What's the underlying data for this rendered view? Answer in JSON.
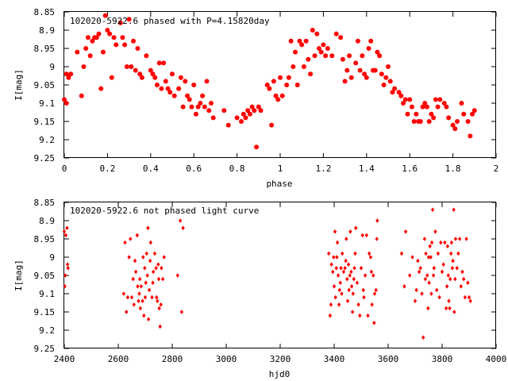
{
  "chart_data": [
    {
      "type": "scatter",
      "title": "102020-5922.6 phased with P=4.15820day",
      "xlabel": "phase",
      "ylabel": "I[mag]",
      "xlim": [
        0,
        2
      ],
      "ylim": [
        9.25,
        8.85
      ],
      "y_inverted": true,
      "xticks": [
        "0",
        "0.2",
        "0.4",
        "0.6",
        "0.8",
        "1",
        "1.2",
        "1.4",
        "1.6",
        "1.8",
        "2"
      ],
      "yticks": [
        "8.85",
        "8.9",
        "8.95",
        "9",
        "9.05",
        "9.1",
        "9.15",
        "9.2",
        "9.25"
      ],
      "marker_color": "#ff0000",
      "marker": "filled-circle",
      "grid": false,
      "points": [
        [
          0.0,
          9.09
        ],
        [
          0.01,
          9.1
        ],
        [
          0.01,
          9.02
        ],
        [
          0.02,
          9.03
        ],
        [
          0.03,
          9.02
        ],
        [
          0.06,
          8.96
        ],
        [
          0.08,
          9.08
        ],
        [
          0.09,
          9.0
        ],
        [
          0.1,
          8.95
        ],
        [
          0.11,
          8.92
        ],
        [
          0.12,
          8.97
        ],
        [
          0.13,
          8.93
        ],
        [
          0.14,
          8.92
        ],
        [
          0.15,
          8.92
        ],
        [
          0.16,
          8.91
        ],
        [
          0.17,
          9.06
        ],
        [
          0.18,
          8.96
        ],
        [
          0.19,
          8.86
        ],
        [
          0.2,
          8.9
        ],
        [
          0.21,
          8.91
        ],
        [
          0.22,
          9.03
        ],
        [
          0.23,
          8.92
        ],
        [
          0.24,
          8.94
        ],
        [
          0.26,
          8.88
        ],
        [
          0.27,
          8.92
        ],
        [
          0.28,
          8.94
        ],
        [
          0.29,
          9.0
        ],
        [
          0.3,
          8.87
        ],
        [
          0.31,
          9.0
        ],
        [
          0.32,
          8.93
        ],
        [
          0.33,
          9.01
        ],
        [
          0.34,
          8.95
        ],
        [
          0.35,
          9.02
        ],
        [
          0.36,
          9.03
        ],
        [
          0.38,
          8.97
        ],
        [
          0.4,
          9.01
        ],
        [
          0.41,
          9.02
        ],
        [
          0.42,
          9.03
        ],
        [
          0.43,
          9.05
        ],
        [
          0.44,
          8.99
        ],
        [
          0.45,
          9.06
        ],
        [
          0.46,
          8.99
        ],
        [
          0.47,
          9.04
        ],
        [
          0.48,
          9.06
        ],
        [
          0.49,
          9.07
        ],
        [
          0.5,
          9.02
        ],
        [
          0.51,
          9.08
        ],
        [
          0.53,
          9.06
        ],
        [
          0.54,
          9.03
        ],
        [
          0.55,
          9.11
        ],
        [
          0.56,
          9.04
        ],
        [
          0.57,
          9.08
        ],
        [
          0.58,
          9.09
        ],
        [
          0.59,
          9.11
        ],
        [
          0.6,
          9.05
        ],
        [
          0.61,
          9.13
        ],
        [
          0.62,
          9.11
        ],
        [
          0.63,
          9.1
        ],
        [
          0.64,
          9.08
        ],
        [
          0.65,
          9.11
        ],
        [
          0.66,
          9.04
        ],
        [
          0.67,
          9.12
        ],
        [
          0.68,
          9.1
        ],
        [
          0.69,
          9.14
        ],
        [
          0.74,
          9.12
        ],
        [
          0.76,
          9.16
        ],
        [
          0.8,
          9.14
        ],
        [
          0.82,
          9.15
        ],
        [
          0.83,
          9.13
        ],
        [
          0.84,
          9.14
        ],
        [
          0.85,
          9.12
        ],
        [
          0.86,
          9.13
        ],
        [
          0.87,
          9.11
        ],
        [
          0.88,
          9.12
        ],
        [
          0.89,
          9.22
        ],
        [
          0.9,
          9.11
        ],
        [
          0.91,
          9.12
        ],
        [
          0.94,
          9.05
        ],
        [
          0.95,
          9.06
        ],
        [
          0.96,
          9.16
        ],
        [
          0.97,
          9.04
        ],
        [
          0.98,
          9.08
        ],
        [
          0.99,
          9.09
        ],
        [
          1.0,
          9.03
        ],
        [
          1.01,
          9.08
        ],
        [
          1.03,
          9.05
        ],
        [
          1.04,
          9.03
        ],
        [
          1.05,
          8.93
        ],
        [
          1.06,
          9.0
        ],
        [
          1.07,
          8.96
        ],
        [
          1.08,
          9.05
        ],
        [
          1.09,
          8.93
        ],
        [
          1.1,
          8.94
        ],
        [
          1.11,
          9.0
        ],
        [
          1.12,
          8.93
        ],
        [
          1.13,
          8.98
        ],
        [
          1.14,
          9.02
        ],
        [
          1.15,
          8.9
        ],
        [
          1.16,
          8.97
        ],
        [
          1.17,
          8.91
        ],
        [
          1.18,
          8.95
        ],
        [
          1.19,
          8.96
        ],
        [
          1.2,
          8.94
        ],
        [
          1.21,
          8.97
        ],
        [
          1.22,
          8.95
        ],
        [
          1.24,
          8.97
        ],
        [
          1.26,
          8.91
        ],
        [
          1.28,
          8.92
        ],
        [
          1.29,
          8.98
        ],
        [
          1.3,
          9.04
        ],
        [
          1.31,
          9.01
        ],
        [
          1.32,
          8.97
        ],
        [
          1.33,
          9.03
        ],
        [
          1.35,
          8.99
        ],
        [
          1.36,
          8.93
        ],
        [
          1.37,
          9.01
        ],
        [
          1.38,
          8.97
        ],
        [
          1.39,
          9.02
        ],
        [
          1.4,
          9.03
        ],
        [
          1.41,
          8.95
        ],
        [
          1.42,
          8.93
        ],
        [
          1.43,
          9.01
        ],
        [
          1.44,
          9.01
        ],
        [
          1.45,
          8.96
        ],
        [
          1.46,
          8.97
        ],
        [
          1.47,
          9.02
        ],
        [
          1.48,
          9.05
        ],
        [
          1.49,
          9.03
        ],
        [
          1.5,
          9.0
        ],
        [
          1.51,
          9.04
        ],
        [
          1.52,
          9.07
        ],
        [
          1.53,
          9.06
        ],
        [
          1.55,
          9.07
        ],
        [
          1.56,
          9.08
        ],
        [
          1.57,
          9.1
        ],
        [
          1.58,
          9.09
        ],
        [
          1.59,
          9.13
        ],
        [
          1.6,
          9.09
        ],
        [
          1.61,
          9.11
        ],
        [
          1.62,
          9.15
        ],
        [
          1.63,
          9.13
        ],
        [
          1.64,
          9.15
        ],
        [
          1.65,
          9.15
        ],
        [
          1.66,
          9.11
        ],
        [
          1.67,
          9.1
        ],
        [
          1.68,
          9.11
        ],
        [
          1.69,
          9.15
        ],
        [
          1.7,
          9.13
        ],
        [
          1.71,
          9.14
        ],
        [
          1.72,
          9.09
        ],
        [
          1.73,
          9.11
        ],
        [
          1.74,
          9.09
        ],
        [
          1.76,
          9.1
        ],
        [
          1.77,
          9.11
        ],
        [
          1.78,
          9.14
        ],
        [
          1.8,
          9.16
        ],
        [
          1.81,
          9.17
        ],
        [
          1.82,
          9.15
        ],
        [
          1.84,
          9.1
        ],
        [
          1.85,
          9.13
        ],
        [
          1.87,
          9.15
        ],
        [
          1.88,
          9.19
        ],
        [
          1.89,
          9.13
        ],
        [
          1.9,
          9.12
        ]
      ]
    },
    {
      "type": "scatter",
      "title": "102020-5922.6 not phased light curve",
      "xlabel": "hjd0",
      "ylabel": "I[mag]",
      "xlim": [
        2400,
        4000
      ],
      "ylim": [
        9.25,
        8.85
      ],
      "y_inverted": true,
      "xticks": [
        "2400",
        "2600",
        "2800",
        "3000",
        "3200",
        "3400",
        "3600",
        "3800",
        "4000"
      ],
      "yticks": [
        "8.85",
        "8.9",
        "8.95",
        "9",
        "9.05",
        "9.1",
        "9.15",
        "9.2",
        "9.25"
      ],
      "marker_color": "#ff0000",
      "marker": "diamond",
      "grid": false,
      "points": [
        [
          2400,
          8.93
        ],
        [
          2402,
          9.08
        ],
        [
          2404,
          9.05
        ],
        [
          2406,
          8.94
        ],
        [
          2410,
          8.92
        ],
        [
          2412,
          9.02
        ],
        [
          2414,
          9.03
        ],
        [
          2620,
          9.1
        ],
        [
          2625,
          8.96
        ],
        [
          2630,
          9.15
        ],
        [
          2635,
          9.11
        ],
        [
          2640,
          9.0
        ],
        [
          2645,
          8.95
        ],
        [
          2650,
          9.11
        ],
        [
          2655,
          9.06
        ],
        [
          2658,
          9.13
        ],
        [
          2662,
          9.01
        ],
        [
          2665,
          9.04
        ],
        [
          2670,
          8.94
        ],
        [
          2672,
          9.08
        ],
        [
          2675,
          9.12
        ],
        [
          2678,
          9.1
        ],
        [
          2680,
          9.06
        ],
        [
          2682,
          9.14
        ],
        [
          2685,
          9.08
        ],
        [
          2690,
          9.12
        ],
        [
          2692,
          9.0
        ],
        [
          2695,
          9.16
        ],
        [
          2698,
          9.03
        ],
        [
          2700,
          9.11
        ],
        [
          2702,
          9.07
        ],
        [
          2705,
          8.99
        ],
        [
          2708,
          9.05
        ],
        [
          2710,
          8.92
        ],
        [
          2712,
          9.17
        ],
        [
          2715,
          9.09
        ],
        [
          2718,
          9.01
        ],
        [
          2720,
          8.96
        ],
        [
          2725,
          9.11
        ],
        [
          2728,
          9.07
        ],
        [
          2730,
          9.04
        ],
        [
          2735,
          8.99
        ],
        [
          2740,
          9.03
        ],
        [
          2742,
          9.11
        ],
        [
          2745,
          9.12
        ],
        [
          2748,
          9.02
        ],
        [
          2750,
          9.06
        ],
        [
          2752,
          9.14
        ],
        [
          2755,
          9.19
        ],
        [
          2758,
          9.13
        ],
        [
          2760,
          9.03
        ],
        [
          2765,
          9.06
        ],
        [
          2770,
          9.0
        ],
        [
          2820,
          9.05
        ],
        [
          2830,
          8.9
        ],
        [
          2835,
          9.15
        ],
        [
          2840,
          8.92
        ],
        [
          3380,
          8.99
        ],
        [
          3385,
          9.16
        ],
        [
          3388,
          9.13
        ],
        [
          3390,
          9.02
        ],
        [
          3395,
          9.04
        ],
        [
          3398,
          9.0
        ],
        [
          3400,
          9.08
        ],
        [
          3403,
          8.93
        ],
        [
          3405,
          9.11
        ],
        [
          3408,
          9.03
        ],
        [
          3410,
          9.0
        ],
        [
          3412,
          8.96
        ],
        [
          3415,
          9.05
        ],
        [
          3418,
          9.13
        ],
        [
          3420,
          9.09
        ],
        [
          3423,
          9.07
        ],
        [
          3425,
          9.03
        ],
        [
          3428,
          9.1
        ],
        [
          3430,
          8.99
        ],
        [
          3435,
          9.04
        ],
        [
          3440,
          9.03
        ],
        [
          3443,
          9.01
        ],
        [
          3445,
          8.95
        ],
        [
          3448,
          9.06
        ],
        [
          3450,
          9.12
        ],
        [
          3453,
          9.02
        ],
        [
          3455,
          9.09
        ],
        [
          3458,
          9.05
        ],
        [
          3460,
          8.93
        ],
        [
          3463,
          9.04
        ],
        [
          3465,
          9.08
        ],
        [
          3468,
          9.15
        ],
        [
          3470,
          9.1
        ],
        [
          3473,
          9.06
        ],
        [
          3475,
          9.03
        ],
        [
          3478,
          8.99
        ],
        [
          3480,
          8.92
        ],
        [
          3485,
          9.07
        ],
        [
          3490,
          9.13
        ],
        [
          3495,
          9.16
        ],
        [
          3500,
          9.03
        ],
        [
          3505,
          8.94
        ],
        [
          3508,
          9.09
        ],
        [
          3510,
          9.11
        ],
        [
          3515,
          9.05
        ],
        [
          3520,
          8.94
        ],
        [
          3525,
          9.16
        ],
        [
          3530,
          8.99
        ],
        [
          3535,
          9.0
        ],
        [
          3538,
          9.04
        ],
        [
          3540,
          9.13
        ],
        [
          3545,
          9.05
        ],
        [
          3548,
          9.18
        ],
        [
          3550,
          9.1
        ],
        [
          3555,
          9.09
        ],
        [
          3558,
          8.95
        ],
        [
          3560,
          8.9
        ],
        [
          3650,
          8.99
        ],
        [
          3660,
          9.08
        ],
        [
          3665,
          8.93
        ],
        [
          3680,
          9.05
        ],
        [
          3690,
          9.0
        ],
        [
          3700,
          9.12
        ],
        [
          3705,
          9.09
        ],
        [
          3710,
          9.01
        ],
        [
          3715,
          9.04
        ],
        [
          3720,
          9.03
        ],
        [
          3725,
          9.1
        ],
        [
          3730,
          9.22
        ],
        [
          3735,
          8.95
        ],
        [
          3738,
          9.06
        ],
        [
          3740,
          8.99
        ],
        [
          3745,
          9.05
        ],
        [
          3748,
          9.14
        ],
        [
          3750,
          9.0
        ],
        [
          3752,
          9.07
        ],
        [
          3755,
          8.97
        ],
        [
          3758,
          9.0
        ],
        [
          3760,
          9.1
        ],
        [
          3762,
          8.96
        ],
        [
          3765,
          8.87
        ],
        [
          3768,
          9.05
        ],
        [
          3770,
          9.03
        ],
        [
          3775,
          8.93
        ],
        [
          3780,
          9.09
        ],
        [
          3785,
          8.99
        ],
        [
          3790,
          9.11
        ],
        [
          3795,
          8.96
        ],
        [
          3800,
          9.04
        ],
        [
          3805,
          9.02
        ],
        [
          3810,
          8.96
        ],
        [
          3815,
          9.14
        ],
        [
          3818,
          9.08
        ],
        [
          3820,
          8.97
        ],
        [
          3823,
          9.05
        ],
        [
          3825,
          9.12
        ],
        [
          3828,
          9.14
        ],
        [
          3830,
          9.06
        ],
        [
          3833,
          8.99
        ],
        [
          3835,
          8.96
        ],
        [
          3838,
          9.03
        ],
        [
          3840,
          9.01
        ],
        [
          3843,
          8.87
        ],
        [
          3845,
          9.15
        ],
        [
          3848,
          9.06
        ],
        [
          3850,
          8.95
        ],
        [
          3855,
          9.03
        ],
        [
          3860,
          8.99
        ],
        [
          3865,
          8.95
        ],
        [
          3870,
          9.08
        ],
        [
          3875,
          9.04
        ],
        [
          3880,
          9.06
        ],
        [
          3885,
          9.11
        ],
        [
          3890,
          8.95
        ],
        [
          3895,
          9.07
        ],
        [
          3900,
          9.11
        ],
        [
          3905,
          9.12
        ]
      ]
    }
  ]
}
